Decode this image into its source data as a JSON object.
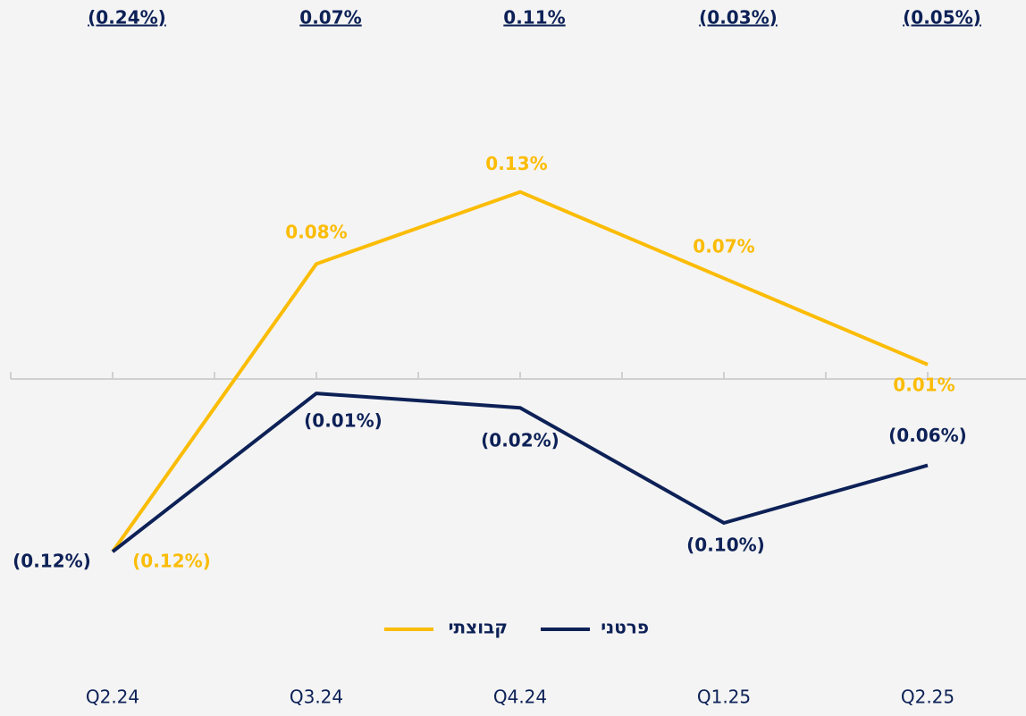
{
  "chart_data": {
    "type": "line",
    "categories": [
      "Q2.24",
      "Q3.24",
      "Q4.24",
      "Q1.25",
      "Q2.25"
    ],
    "series": [
      {
        "name": "קבוצתי",
        "color": "#fbbc05",
        "values": [
          -0.12,
          0.08,
          0.13,
          0.07,
          0.01
        ],
        "value_labels": [
          "(0.12%)",
          "0.08%",
          "0.13%",
          "0.07%",
          "0.01%"
        ]
      },
      {
        "name": "פרטני",
        "color": "#0d2157",
        "values": [
          -0.12,
          -0.01,
          -0.02,
          -0.1,
          -0.06
        ],
        "value_labels": [
          "(0.12%)",
          "(0.01%)",
          "(0.02%)",
          "(0.10%)",
          "(0.06%)"
        ]
      }
    ],
    "totals": {
      "values": [
        -0.24,
        0.07,
        0.11,
        -0.03,
        -0.05
      ],
      "value_labels": [
        "(0.24%)",
        "0.07%",
        "0.11%",
        "(0.03%)",
        "(0.05%)"
      ]
    },
    "ylim": [
      -0.2,
      0.2
    ]
  }
}
